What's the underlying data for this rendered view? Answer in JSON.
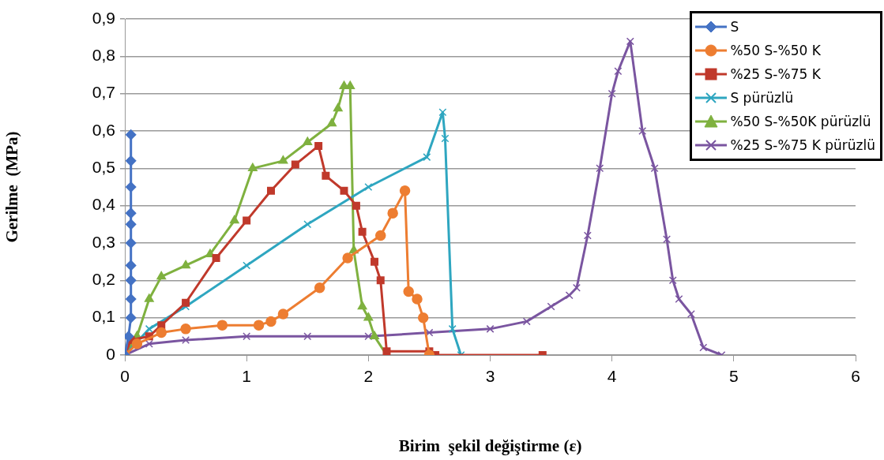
{
  "chart_data": {
    "type": "line",
    "xlabel": "Birim  şekil değiştirme (ε)",
    "ylabel": "Gerilme  (MPa)",
    "xlim": [
      0,
      6
    ],
    "xticks": [
      0,
      1,
      2,
      3,
      4,
      5,
      6
    ],
    "ylim": [
      0,
      0.9
    ],
    "yticks": [
      {
        "value": 0,
        "label": "0"
      },
      {
        "value": 0.1,
        "label": "0,1"
      },
      {
        "value": 0.2,
        "label": "0,2"
      },
      {
        "value": 0.3,
        "label": "0,3"
      },
      {
        "value": 0.4,
        "label": "0,4"
      },
      {
        "value": 0.5,
        "label": "0,5"
      },
      {
        "value": 0.6,
        "label": "0,6"
      },
      {
        "value": 0.7,
        "label": "0,7"
      },
      {
        "value": 0.8,
        "label": "0,8"
      },
      {
        "value": 0.9,
        "label": "0,9"
      }
    ],
    "grid": "y",
    "legend": "top right",
    "line_style": "solid",
    "series": [
      {
        "name": "S",
        "color": "#4472c4",
        "marker": "diamond",
        "x": [
          0,
          0.03,
          0.05,
          0.05,
          0.05,
          0.05,
          0.05,
          0.05,
          0.05,
          0.05,
          0.05,
          0.05
        ],
        "values": [
          0,
          0.05,
          0.1,
          0.15,
          0.2,
          0.24,
          0.3,
          0.35,
          0.38,
          0.45,
          0.52,
          0.59
        ]
      },
      {
        "name": "%50 S-%50 K",
        "color": "#ed7d31",
        "marker": "circle",
        "x": [
          0,
          0.1,
          0.3,
          0.5,
          0.8,
          1.1,
          1.2,
          1.3,
          1.6,
          1.83,
          2.1,
          2.2,
          2.3,
          2.33,
          2.4,
          2.45,
          2.5
        ],
        "values": [
          0,
          0.03,
          0.06,
          0.07,
          0.08,
          0.08,
          0.09,
          0.11,
          0.18,
          0.26,
          0.32,
          0.38,
          0.44,
          0.17,
          0.15,
          0.1,
          0
        ]
      },
      {
        "name": "%25 S-%75 K",
        "color": "#c0392b",
        "marker": "square",
        "x": [
          0,
          0.05,
          0.2,
          0.3,
          0.5,
          0.75,
          1.0,
          1.2,
          1.4,
          1.59,
          1.65,
          1.8,
          1.9,
          1.95,
          2.05,
          2.1,
          2.15,
          2.5,
          2.55,
          3.43
        ],
        "values": [
          0,
          0.04,
          0.05,
          0.08,
          0.14,
          0.26,
          0.36,
          0.44,
          0.51,
          0.56,
          0.48,
          0.44,
          0.4,
          0.33,
          0.25,
          0.2,
          0.01,
          0.01,
          0,
          0
        ]
      },
      {
        "name": "S pürüzlü",
        "color": "#2ea6c0",
        "marker": "cross",
        "x": [
          0,
          0.2,
          0.5,
          1.0,
          1.5,
          2.0,
          2.48,
          2.61,
          2.63,
          2.69,
          2.76
        ],
        "values": [
          0,
          0.07,
          0.13,
          0.24,
          0.35,
          0.45,
          0.53,
          0.65,
          0.58,
          0.07,
          0
        ]
      },
      {
        "name": "%50 S-%50K pürüzlü",
        "color": "#7fb13f",
        "marker": "triangle",
        "x": [
          0,
          0.1,
          0.2,
          0.3,
          0.5,
          0.7,
          0.9,
          1.05,
          1.3,
          1.5,
          1.7,
          1.75,
          1.8,
          1.85,
          1.88,
          1.95,
          2.0,
          2.05,
          2.15
        ],
        "values": [
          0,
          0.05,
          0.15,
          0.21,
          0.24,
          0.27,
          0.36,
          0.5,
          0.52,
          0.57,
          0.62,
          0.66,
          0.72,
          0.72,
          0.28,
          0.13,
          0.1,
          0.05,
          0
        ]
      },
      {
        "name": "%25 S-%75 K pürüzlü",
        "color": "#7a55a0",
        "marker": "cross",
        "x": [
          0,
          0.2,
          0.5,
          1.0,
          1.5,
          2.0,
          2.5,
          3.0,
          3.3,
          3.5,
          3.65,
          3.71,
          3.8,
          3.9,
          4.0,
          4.05,
          4.15,
          4.25,
          4.35,
          4.45,
          4.5,
          4.55,
          4.65,
          4.75,
          4.9
        ],
        "values": [
          0,
          0.03,
          0.04,
          0.05,
          0.05,
          0.05,
          0.06,
          0.07,
          0.09,
          0.13,
          0.16,
          0.18,
          0.32,
          0.5,
          0.7,
          0.76,
          0.84,
          0.6,
          0.5,
          0.31,
          0.2,
          0.15,
          0.11,
          0.02,
          0
        ]
      }
    ]
  }
}
